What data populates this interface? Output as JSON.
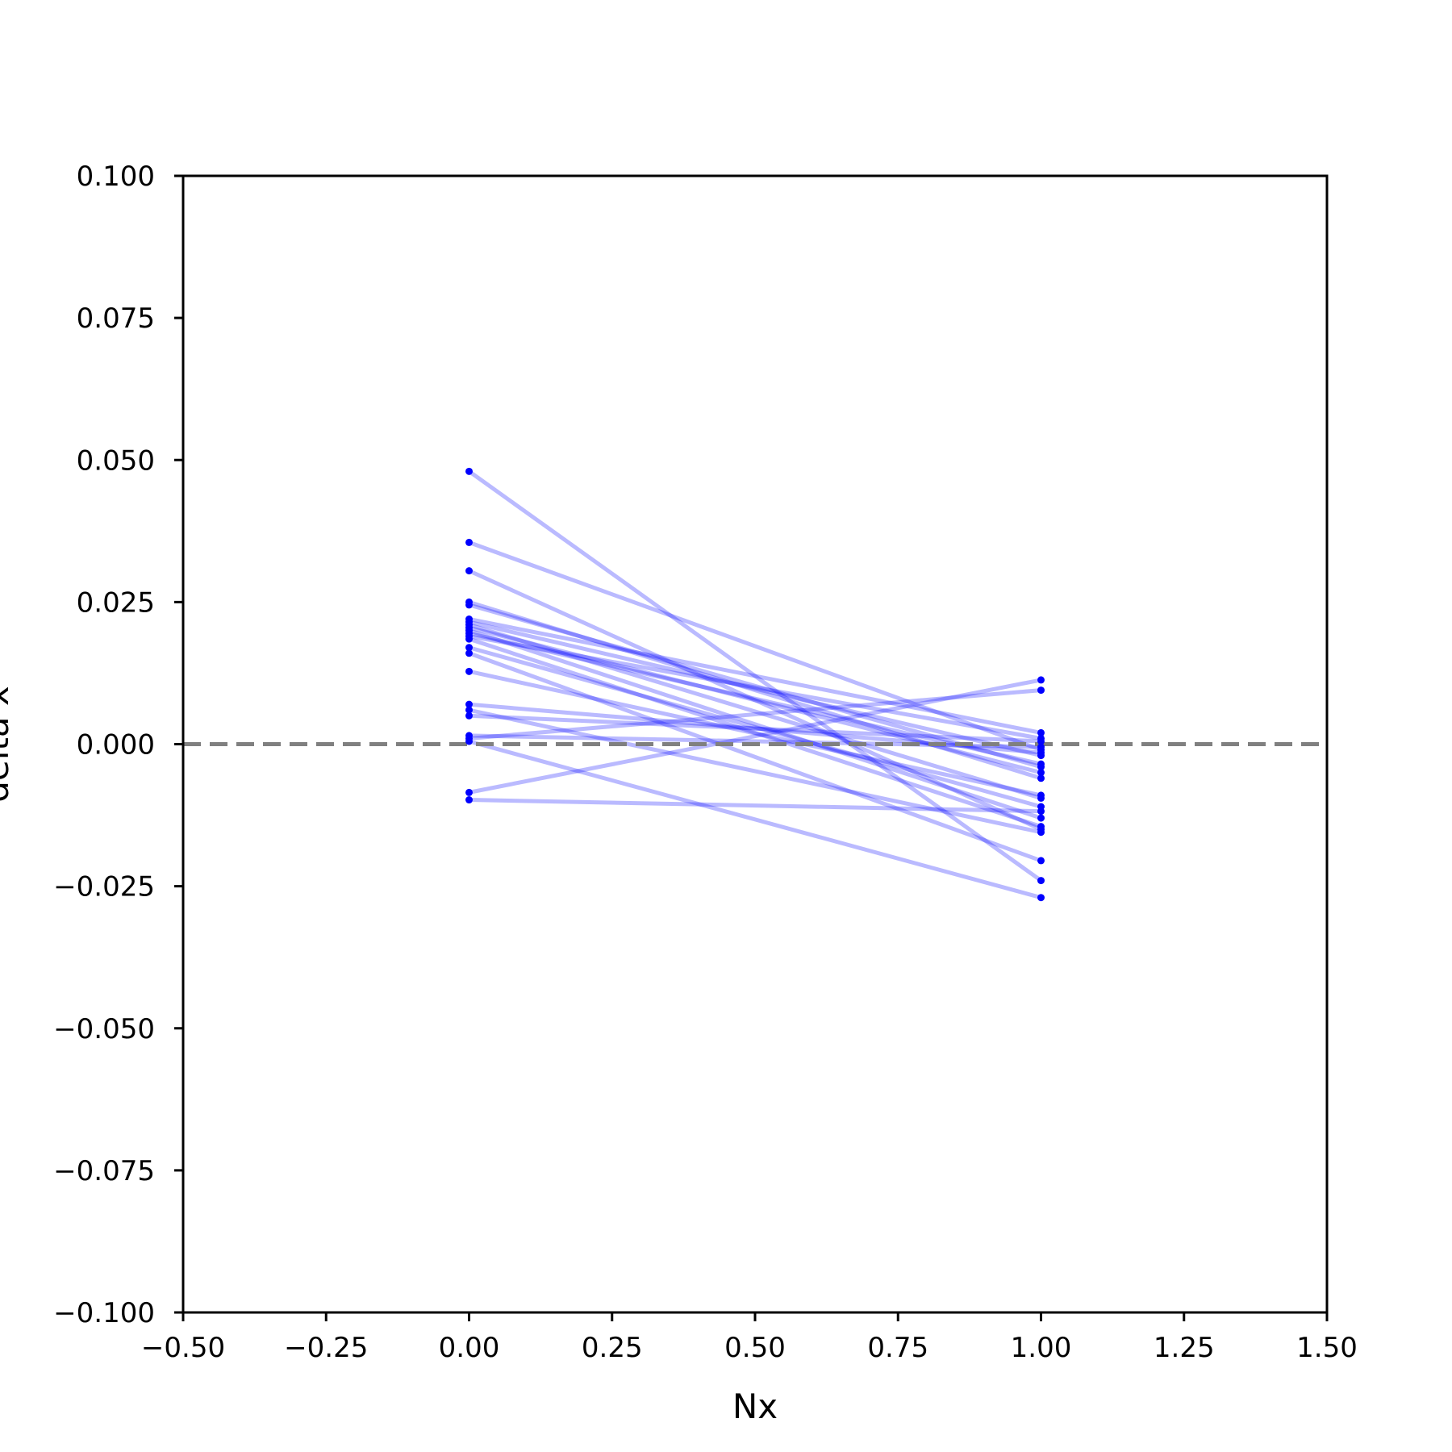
{
  "chart_data": {
    "type": "line",
    "xlabel": "Nx",
    "ylabel": "delta x",
    "xlim": [
      -0.5,
      1.5
    ],
    "ylim": [
      -0.1,
      0.1
    ],
    "x_ticks": [
      -0.5,
      -0.25,
      0.0,
      0.25,
      0.5,
      0.75,
      1.0,
      1.25,
      1.5
    ],
    "x_tick_labels": [
      "−0.50",
      "−0.25",
      "0.00",
      "0.25",
      "0.50",
      "0.75",
      "1.00",
      "1.25",
      "1.50"
    ],
    "y_ticks": [
      0.1,
      0.075,
      0.05,
      0.025,
      0.0,
      -0.025,
      -0.05,
      -0.075,
      -0.1
    ],
    "y_tick_labels": [
      "0.100",
      "0.075",
      "0.050",
      "0.025",
      "0.000",
      "−0.025",
      "−0.050",
      "−0.075",
      "−0.100"
    ],
    "reference_line": {
      "y": 0.0,
      "style": "dashed",
      "color": "#808080"
    },
    "series_color": "#0000ff",
    "line_opacity": 0.27,
    "grid": false,
    "pairs": [
      {
        "x": [
          0,
          1
        ],
        "y": [
          0.048,
          -0.024
        ]
      },
      {
        "x": [
          0,
          1
        ],
        "y": [
          0.0355,
          -0.001
        ]
      },
      {
        "x": [
          0,
          1
        ],
        "y": [
          0.0305,
          -0.015
        ]
      },
      {
        "x": [
          0,
          1
        ],
        "y": [
          0.025,
          -0.006
        ]
      },
      {
        "x": [
          0,
          1
        ],
        "y": [
          0.0245,
          -0.004
        ]
      },
      {
        "x": [
          0,
          1
        ],
        "y": [
          0.022,
          0.002
        ]
      },
      {
        "x": [
          0,
          1
        ],
        "y": [
          0.0215,
          -0.002
        ]
      },
      {
        "x": [
          0,
          1
        ],
        "y": [
          0.021,
          -0.0095
        ]
      },
      {
        "x": [
          0,
          1
        ],
        "y": [
          0.0205,
          -0.005
        ]
      },
      {
        "x": [
          0,
          1
        ],
        "y": [
          0.02,
          -0.013
        ]
      },
      {
        "x": [
          0,
          1
        ],
        "y": [
          0.0195,
          -0.0035
        ]
      },
      {
        "x": [
          0,
          1
        ],
        "y": [
          0.019,
          0.001
        ]
      },
      {
        "x": [
          0,
          1
        ],
        "y": [
          0.0185,
          -0.0145
        ]
      },
      {
        "x": [
          0,
          1
        ],
        "y": [
          0.017,
          -0.011
        ]
      },
      {
        "x": [
          0,
          1
        ],
        "y": [
          0.016,
          -0.0205
        ]
      },
      {
        "x": [
          0,
          1
        ],
        "y": [
          0.0128,
          -0.009
        ]
      },
      {
        "x": [
          0,
          1
        ],
        "y": [
          0.007,
          -0.0015
        ]
      },
      {
        "x": [
          0,
          1
        ],
        "y": [
          0.006,
          -0.0155
        ]
      },
      {
        "x": [
          0,
          1
        ],
        "y": [
          0.005,
          0.0005
        ]
      },
      {
        "x": [
          0,
          1
        ],
        "y": [
          0.0015,
          -0.0005
        ]
      },
      {
        "x": [
          0,
          1
        ],
        "y": [
          0.001,
          0.0095
        ]
      },
      {
        "x": [
          0,
          1
        ],
        "y": [
          0.0005,
          -0.027
        ]
      },
      {
        "x": [
          0,
          1
        ],
        "y": [
          -0.0085,
          0.0113
        ]
      },
      {
        "x": [
          0,
          1
        ],
        "y": [
          -0.0098,
          -0.0118
        ]
      }
    ]
  }
}
